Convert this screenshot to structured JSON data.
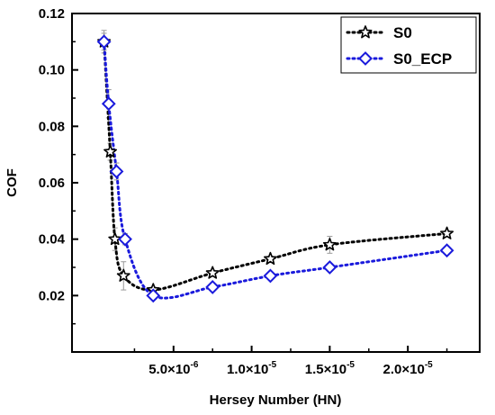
{
  "chart_data": {
    "type": "line",
    "xlabel": "Hersey Number (HN)",
    "ylabel": "COF",
    "xlim": [
      -1.5e-06,
      2.46e-05
    ],
    "ylim": [
      0.0,
      0.12
    ],
    "x_ticks": [
      {
        "value": 5e-06,
        "mantissa": "5.0×10",
        "exp": "-6"
      },
      {
        "value": 1e-05,
        "mantissa": "1.0×10",
        "exp": "-5"
      },
      {
        "value": 1.5e-05,
        "mantissa": "1.5×10",
        "exp": "-5"
      },
      {
        "value": 2e-05,
        "mantissa": "2.0×10",
        "exp": "-5"
      }
    ],
    "y_ticks": [
      "0.02",
      "0.04",
      "0.06",
      "0.08",
      "0.10",
      "0.12"
    ],
    "legend_position": "top-right",
    "grid": false,
    "series": [
      {
        "name": "S0",
        "color": "#000000",
        "marker": "star",
        "x": [
          5.5e-07,
          9.5e-07,
          1.25e-06,
          1.8e-06,
          3.7e-06,
          7.5e-06,
          1.12e-05,
          1.5e-05,
          2.25e-05
        ],
        "y": [
          0.11,
          0.071,
          0.04,
          0.027,
          0.022,
          0.028,
          0.033,
          0.038,
          0.042
        ],
        "err": [
          0.004,
          0.003,
          0.004,
          0.005,
          0.001,
          0.001,
          0.001,
          0.003,
          0.001
        ]
      },
      {
        "name": "S0_ECP",
        "color": "#1a1adc",
        "marker": "diamond",
        "x": [
          5.5e-07,
          8.5e-07,
          1.35e-06,
          1.9e-06,
          3.7e-06,
          7.5e-06,
          1.12e-05,
          1.5e-05,
          2.25e-05
        ],
        "y": [
          0.11,
          0.088,
          0.064,
          0.04,
          0.02,
          0.023,
          0.027,
          0.03,
          0.036
        ],
        "err": [
          0.003,
          0.005,
          0.003,
          0.002,
          0.001,
          0.001,
          0.001,
          0.001,
          0.001
        ]
      }
    ]
  }
}
